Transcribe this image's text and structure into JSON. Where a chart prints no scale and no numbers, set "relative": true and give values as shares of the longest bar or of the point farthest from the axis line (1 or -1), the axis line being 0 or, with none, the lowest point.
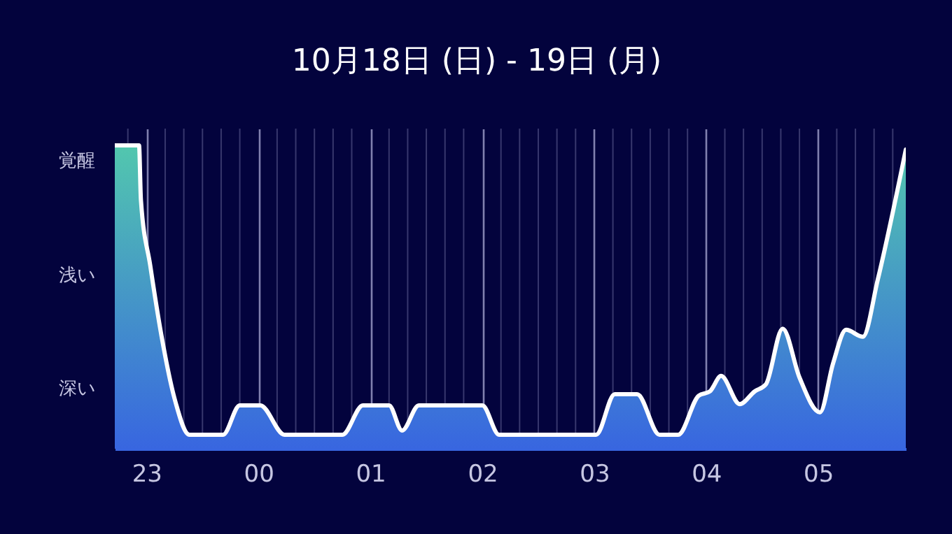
{
  "chart_data": {
    "type": "area",
    "title": "10月18日 (日) - 19日 (月)",
    "x": [
      "--10-18T22:43",
      "--10-18T22:56",
      "--10-18T22:57",
      "--10-18T23:02",
      "--10-18T23:08",
      "--10-18T23:15",
      "--10-18T23:23",
      "--10-18T23:41",
      "--10-18T23:50",
      "--10-19T00:01",
      "--10-19T00:14",
      "--10-19T00:45",
      "--10-19T00:56",
      "--10-19T01:10",
      "--10-19T01:17",
      "--10-19T01:26",
      "--10-19T02:00",
      "--10-19T02:09",
      "--10-19T03:01",
      "--10-19T03:11",
      "--10-19T03:23",
      "--10-19T03:35",
      "--10-19T03:45",
      "--10-19T03:56",
      "--10-19T04:02",
      "--10-19T04:08",
      "--10-19T04:18",
      "--10-19T04:26",
      "--10-19T04:32",
      "--10-19T04:41",
      "--10-19T04:50",
      "--10-19T05:01",
      "--10-19T05:08",
      "--10-19T05:15",
      "--10-19T05:24",
      "--10-19T05:32",
      "--10-19T05:47"
    ],
    "series": [
      {
        "color": "#3866e0",
        "values": [
          1,
          1,
          0.82,
          0.604,
          0.373,
          0.166,
          0.046,
          0.046,
          0.143,
          0.143,
          0.046,
          0.046,
          0.143,
          0.143,
          0.06,
          0.143,
          0.143,
          0.046,
          0.046,
          0.18,
          0.18,
          0.046,
          0.046,
          0.175,
          0.189,
          0.24,
          0.147,
          0.189,
          0.212,
          0.396,
          0.235,
          0.12,
          0.281,
          0.392,
          0.369,
          0.558,
          0.986
        ]
      }
    ],
    "relative": true,
    "annotations": [
      "覚醒",
      "浅い",
      "深い"
    ],
    "xlim": [
      "--10-18T22:43",
      "--10-19T05:47"
    ],
    "xticks": [
      {
        "value": "--10-18T22:50",
        "label": null
      },
      {
        "value": "--10-18T23:00",
        "label": "23"
      },
      {
        "value": "--10-18T23:10",
        "label": null
      },
      {
        "value": "--10-18T23:20",
        "label": null
      },
      {
        "value": "--10-18T23:30",
        "label": null
      },
      {
        "value": "--10-18T23:40",
        "label": null
      },
      {
        "value": "--10-18T23:50",
        "label": null
      },
      {
        "value": "--10-19T00:00",
        "label": "00"
      },
      {
        "value": "--10-19T00:10",
        "label": null
      },
      {
        "value": "--10-19T00:20",
        "label": null
      },
      {
        "value": "--10-19T00:30",
        "label": null
      },
      {
        "value": "--10-19T00:40",
        "label": null
      },
      {
        "value": "--10-19T00:50",
        "label": null
      },
      {
        "value": "--10-19T01:00",
        "label": "01"
      },
      {
        "value": "--10-19T01:10",
        "label": null
      },
      {
        "value": "--10-19T01:20",
        "label": null
      },
      {
        "value": "--10-19T01:30",
        "label": null
      },
      {
        "value": "--10-19T01:40",
        "label": null
      },
      {
        "value": "--10-19T01:50",
        "label": null
      },
      {
        "value": "--10-19T02:00",
        "label": "02"
      },
      {
        "value": "--10-19T02:10",
        "label": null
      },
      {
        "value": "--10-19T02:20",
        "label": null
      },
      {
        "value": "--10-19T02:30",
        "label": null
      },
      {
        "value": "--10-19T02:40",
        "label": null
      },
      {
        "value": "--10-19T02:50",
        "label": null
      },
      {
        "value": "--10-19T03:00",
        "label": "03"
      },
      {
        "value": "--10-19T03:10",
        "label": null
      },
      {
        "value": "--10-19T03:20",
        "label": null
      },
      {
        "value": "--10-19T03:30",
        "label": null
      },
      {
        "value": "--10-19T03:40",
        "label": null
      },
      {
        "value": "--10-19T03:50",
        "label": null
      },
      {
        "value": "--10-19T04:00",
        "label": "04"
      },
      {
        "value": "--10-19T04:10",
        "label": null
      },
      {
        "value": "--10-19T04:20",
        "label": null
      },
      {
        "value": "--10-19T04:30",
        "label": null
      },
      {
        "value": "--10-19T04:40",
        "label": null
      },
      {
        "value": "--10-19T04:50",
        "label": null
      },
      {
        "value": "--10-19T05:00",
        "label": "05"
      },
      {
        "value": "--10-19T05:10",
        "label": null
      },
      {
        "value": "--10-19T05:20",
        "label": null
      },
      {
        "value": "--10-19T05:30",
        "label": null
      },
      {
        "value": "--10-19T05:40",
        "label": null
      }
    ],
    "grid": "x",
    "marker": "none",
    "line_style": "solid"
  }
}
